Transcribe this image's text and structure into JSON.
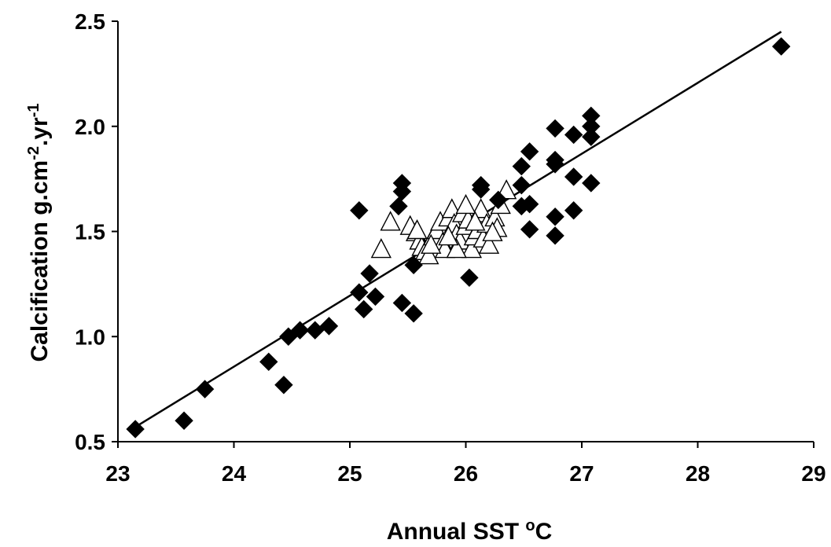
{
  "chart_data": {
    "type": "scatter",
    "title": "",
    "xlabel": {
      "main": "Annual SST ",
      "sup": "o",
      "tail": "C"
    },
    "ylabel": {
      "p1": "Calcification g.cm",
      "s1": "-2",
      "p2": ".yr",
      "s2": "-1"
    },
    "xlim": [
      23,
      29
    ],
    "ylim": [
      0.5,
      2.5
    ],
    "xticks": [
      "23",
      "24",
      "25",
      "26",
      "27",
      "28",
      "29"
    ],
    "yticks": [
      "0.5",
      "1.0",
      "1.5",
      "2.0",
      "2.5"
    ],
    "grid": false,
    "legend": "none",
    "series": [
      {
        "marker": "diamond",
        "color": "#000000",
        "points": [
          [
            23.15,
            0.56
          ],
          [
            23.57,
            0.6
          ],
          [
            23.75,
            0.75
          ],
          [
            24.3,
            0.88
          ],
          [
            24.43,
            0.77
          ],
          [
            24.47,
            1.0
          ],
          [
            24.57,
            1.03
          ],
          [
            24.7,
            1.03
          ],
          [
            24.82,
            1.05
          ],
          [
            25.08,
            1.6
          ],
          [
            25.08,
            1.21
          ],
          [
            25.12,
            1.13
          ],
          [
            25.17,
            1.3
          ],
          [
            25.22,
            1.19
          ],
          [
            25.42,
            1.62
          ],
          [
            25.45,
            1.73
          ],
          [
            25.45,
            1.69
          ],
          [
            25.45,
            1.16
          ],
          [
            25.55,
            1.11
          ],
          [
            25.55,
            1.34
          ],
          [
            26.03,
            1.28
          ],
          [
            26.13,
            1.72
          ],
          [
            26.13,
            1.7
          ],
          [
            26.28,
            1.65
          ],
          [
            26.48,
            1.62
          ],
          [
            26.48,
            1.81
          ],
          [
            26.48,
            1.72
          ],
          [
            26.55,
            1.88
          ],
          [
            26.55,
            1.63
          ],
          [
            26.55,
            1.51
          ],
          [
            26.77,
            1.99
          ],
          [
            26.77,
            1.84
          ],
          [
            26.77,
            1.82
          ],
          [
            26.77,
            1.57
          ],
          [
            26.77,
            1.48
          ],
          [
            26.93,
            1.96
          ],
          [
            26.93,
            1.76
          ],
          [
            26.93,
            1.6
          ],
          [
            27.08,
            2.05
          ],
          [
            27.08,
            2.0
          ],
          [
            27.08,
            1.95
          ],
          [
            27.08,
            1.73
          ],
          [
            28.72,
            2.38
          ]
        ]
      },
      {
        "marker": "open-triangle",
        "color": "#000000",
        "points": [
          [
            25.27,
            1.41
          ],
          [
            25.35,
            1.54
          ],
          [
            25.52,
            1.52
          ],
          [
            25.57,
            1.49
          ],
          [
            25.6,
            1.45
          ],
          [
            25.62,
            1.42
          ],
          [
            25.65,
            1.4
          ],
          [
            25.68,
            1.38
          ],
          [
            25.72,
            1.47
          ],
          [
            25.75,
            1.5
          ],
          [
            25.78,
            1.54
          ],
          [
            25.8,
            1.44
          ],
          [
            25.82,
            1.41
          ],
          [
            25.85,
            1.56
          ],
          [
            25.88,
            1.6
          ],
          [
            25.9,
            1.53
          ],
          [
            25.92,
            1.48
          ],
          [
            25.95,
            1.45
          ],
          [
            25.97,
            1.58
          ],
          [
            26.0,
            1.52
          ],
          [
            26.02,
            1.55
          ],
          [
            26.05,
            1.41
          ],
          [
            26.07,
            1.47
          ],
          [
            26.1,
            1.5
          ],
          [
            26.12,
            1.58
          ],
          [
            26.13,
            1.6
          ],
          [
            26.15,
            1.46
          ],
          [
            26.18,
            1.53
          ],
          [
            26.2,
            1.43
          ],
          [
            26.25,
            1.56
          ],
          [
            26.27,
            1.51
          ],
          [
            26.3,
            1.62
          ],
          [
            26.35,
            1.69
          ],
          [
            25.58,
            1.5
          ],
          [
            25.7,
            1.43
          ],
          [
            25.92,
            1.41
          ],
          [
            26.0,
            1.62
          ],
          [
            26.08,
            1.54
          ],
          [
            26.23,
            1.49
          ],
          [
            25.85,
            1.47
          ]
        ]
      }
    ],
    "fit_line": {
      "x1": 23.15,
      "y1": 0.57,
      "x2": 28.72,
      "y2": 2.45
    }
  }
}
